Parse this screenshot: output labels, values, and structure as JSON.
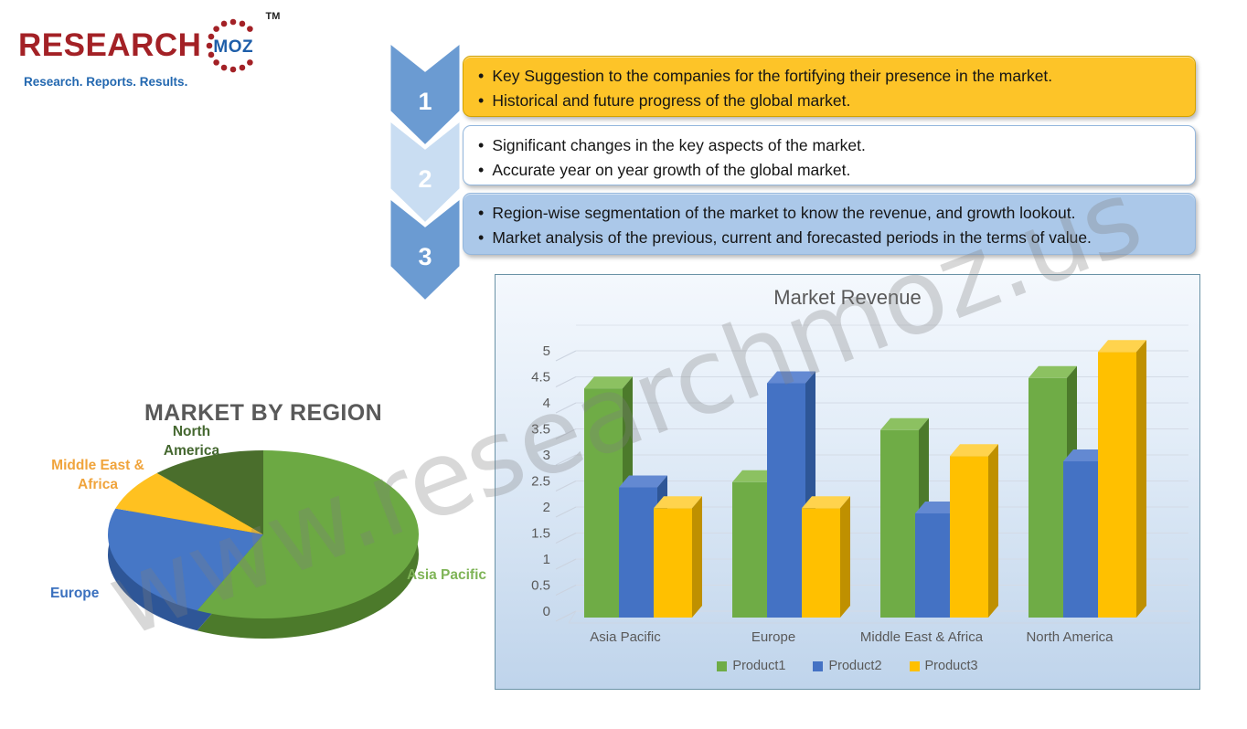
{
  "logo": {
    "brand_primary": "RESEARCH",
    "brand_secondary": "MOZ",
    "trademark": "TM",
    "tagline": "Research. Reports. Results.",
    "colors": {
      "primary_red": "#A32126",
      "secondary_blue": "#1E5EA9"
    }
  },
  "watermark": "www.researchmoz.us",
  "steps": [
    {
      "num": "1",
      "chevron_fill": "#6B9BD2",
      "fill": "#FDC428",
      "border": "#D2A200",
      "bullets": [
        "Key Suggestion to the companies for the fortifying their presence in the market.",
        "Historical and future progress of the global market."
      ]
    },
    {
      "num": "2",
      "chevron_fill": "#C9DDF2",
      "fill": "#FFFFFF",
      "border": "#94B7DD",
      "bullets": [
        "Significant changes in the key aspects of the market.",
        "Accurate year on year growth of the global market."
      ]
    },
    {
      "num": "3",
      "chevron_fill": "#6B9BD2",
      "fill": "#ABC8E9",
      "border": "#94B7DD",
      "bullets": [
        "Region-wise segmentation of the market to know the revenue, and growth lookout.",
        "Market analysis of the previous, current and forecasted periods in the terms of value."
      ]
    }
  ],
  "chart_data": [
    {
      "type": "pie",
      "title": "MARKET BY REGION",
      "start_angle_deg": 0,
      "direction": "clockwise",
      "values_unit": "% share (estimated from slice angles)",
      "slices": [
        {
          "label": "Asia Pacific",
          "value": 57,
          "color": "#6CA943",
          "side_color": "#4C7A2B",
          "label_color": "#7FB457"
        },
        {
          "label": "Europe",
          "value": 23,
          "color": "#4677C6",
          "side_color": "#2E5697",
          "label_color": "#3A70BE"
        },
        {
          "label": "Middle East & Africa",
          "value": 8,
          "color": "#FFC120",
          "side_color": "#BF9000",
          "label_color": "#F0A43C"
        },
        {
          "label": "North America",
          "value": 12,
          "color": "#4A6E2C",
          "side_color": "#33511D",
          "label_color": "#44672F"
        }
      ]
    },
    {
      "type": "bar",
      "title": "Market Revenue",
      "categories": [
        "Asia Pacific",
        "Europe",
        "Middle East & Africa",
        "North America"
      ],
      "series": [
        {
          "name": "Product1",
          "color": "#6FAC46",
          "side_color": "#4C7A2B",
          "top_color": "#8CC161",
          "values": [
            4.4,
            2.6,
            3.6,
            4.6
          ]
        },
        {
          "name": "Product2",
          "color": "#4472C4",
          "side_color": "#2E5697",
          "top_color": "#6389D2",
          "values": [
            2.5,
            4.5,
            2.0,
            3.0
          ]
        },
        {
          "name": "Product3",
          "color": "#FFC000",
          "side_color": "#BF9000",
          "top_color": "#FFD34D",
          "values": [
            2.1,
            2.1,
            3.1,
            5.1
          ]
        }
      ],
      "ylim": [
        0,
        5
      ],
      "ytick_step": 0.5,
      "grid": true,
      "legend_position": "bottom"
    }
  ]
}
